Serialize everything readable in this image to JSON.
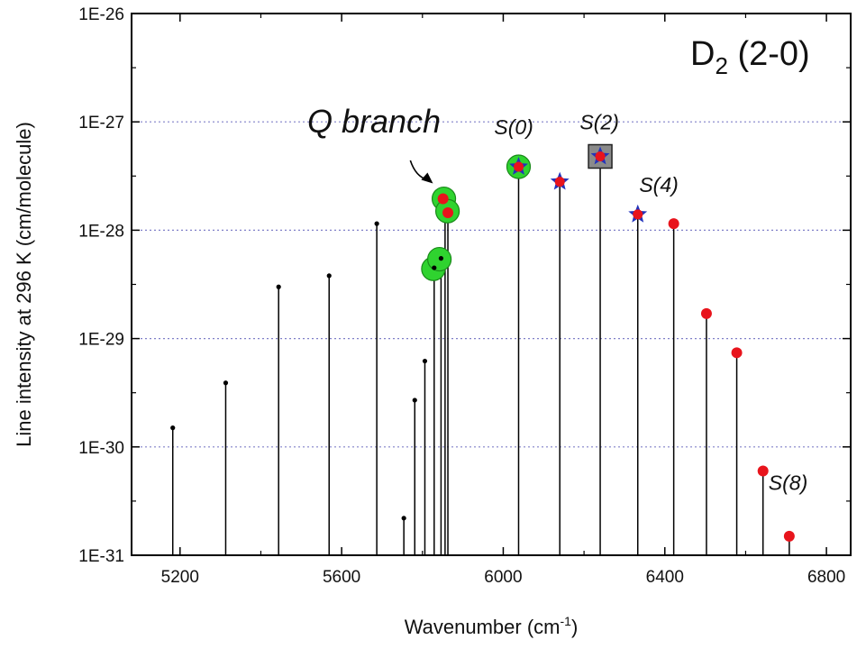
{
  "chart_data": {
    "type": "scatter",
    "xlabel": "Wavenumber (cm",
    "xlabel_sup": "-1",
    "xlabel_end": ")",
    "ylabel": "Line intensity at 296 K (cm/molecule)",
    "xlim": [
      5080,
      6860
    ],
    "ylim": [
      1e-31,
      1e-26
    ],
    "yscale": "log",
    "xticks": [
      5200,
      5600,
      6000,
      6400,
      6800
    ],
    "yticks": [
      1e-31,
      1e-30,
      1e-29,
      1e-28,
      1e-27,
      1e-26
    ],
    "ytick_labels": [
      "1E-31",
      "1E-30",
      "1E-29",
      "1E-28",
      "1E-27",
      "1E-26"
    ],
    "grid": "horizontal dotted",
    "molecule": {
      "base": "D",
      "sub": "2",
      "band": " (2-0)"
    },
    "colors": {
      "stem": "#000000",
      "red": "#e8141c",
      "green": "#2fd32f",
      "star": "#2233bb",
      "grid": "#8080c8",
      "box": "#8a8a8a"
    },
    "series": [
      {
        "marker": "small-black-dot",
        "points": [
          {
            "x": 5182,
            "y": 1.5e-30
          },
          {
            "x": 5313,
            "y": 3.9e-30
          },
          {
            "x": 5444,
            "y": 3e-29
          },
          {
            "x": 5569,
            "y": 3.8e-29
          },
          {
            "x": 5687,
            "y": 1.15e-28
          },
          {
            "x": 5754,
            "y": 2.2e-31
          },
          {
            "x": 5781,
            "y": 2.7e-30
          },
          {
            "x": 5806,
            "y": 6.2e-30
          },
          {
            "x": 5829,
            "y": 4.5e-29
          },
          {
            "x": 5846,
            "y": 5.5e-29
          }
        ]
      },
      {
        "marker": "red-dot",
        "points": [
          {
            "x": 5851,
            "y": 1.95e-28
          },
          {
            "x": 5863,
            "y": 1.45e-28
          },
          {
            "x": 6422,
            "y": 1.15e-28
          },
          {
            "x": 6503,
            "y": 1.7e-29
          },
          {
            "x": 6578,
            "y": 7.4e-30
          },
          {
            "x": 6643,
            "y": 6e-31
          },
          {
            "x": 6708,
            "y": 1.5e-31
          }
        ]
      },
      {
        "marker": "green-circle",
        "points": [
          {
            "x": 5827,
            "y": 4.4e-29
          },
          {
            "x": 5842,
            "y": 5.4e-29
          },
          {
            "x": 5853,
            "y": 1.95e-28
          },
          {
            "x": 5862,
            "y": 1.5e-28
          },
          {
            "x": 6038,
            "y": 3.85e-28
          }
        ]
      },
      {
        "marker": "blue-star",
        "points": [
          {
            "x": 6038,
            "y": 3.85e-28
          },
          {
            "x": 6140,
            "y": 2.8e-28
          },
          {
            "x": 6240,
            "y": 4.8e-28
          },
          {
            "x": 6333,
            "y": 1.4e-28
          }
        ]
      },
      {
        "marker": "open-square",
        "points": [
          {
            "x": 6240,
            "y": 4.8e-28
          }
        ]
      }
    ],
    "stems": [
      {
        "x": 5182,
        "y": 1.5e-30
      },
      {
        "x": 5313,
        "y": 3.9e-30
      },
      {
        "x": 5444,
        "y": 3e-29
      },
      {
        "x": 5569,
        "y": 3.8e-29
      },
      {
        "x": 5687,
        "y": 1.15e-28
      },
      {
        "x": 5754,
        "y": 2.2e-31
      },
      {
        "x": 5781,
        "y": 2.7e-30
      },
      {
        "x": 5806,
        "y": 6.2e-30
      },
      {
        "x": 5829,
        "y": 4.5e-29
      },
      {
        "x": 5846,
        "y": 5.5e-29
      },
      {
        "x": 5856,
        "y": 1.95e-28
      },
      {
        "x": 5863,
        "y": 1.45e-28
      },
      {
        "x": 6038,
        "y": 3.85e-28
      },
      {
        "x": 6140,
        "y": 2.8e-28
      },
      {
        "x": 6240,
        "y": 4.8e-28
      },
      {
        "x": 6333,
        "y": 1.4e-28
      },
      {
        "x": 6422,
        "y": 1.15e-28
      },
      {
        "x": 6503,
        "y": 1.7e-29
      },
      {
        "x": 6578,
        "y": 7.4e-30
      },
      {
        "x": 6643,
        "y": 6e-31
      },
      {
        "x": 6708,
        "y": 1.5e-31
      }
    ],
    "annotations": [
      {
        "text": "Q branch",
        "x": 5680,
        "y": 8e-28,
        "size": "large"
      },
      {
        "text": "S(0)",
        "x": 6026,
        "y": 7.7e-28,
        "size": "medium"
      },
      {
        "text": "S(2)",
        "x": 6238,
        "y": 8.5e-28,
        "size": "medium"
      },
      {
        "text": "S(4)",
        "x": 6385,
        "y": 2.25e-28,
        "size": "medium"
      },
      {
        "text": "S(8)",
        "x": 6705,
        "y": 4e-31,
        "size": "medium"
      }
    ],
    "arrow": {
      "from": {
        "x": 5770,
        "y": 4.4e-28
      },
      "to": {
        "x": 5826,
        "y": 2.7e-28
      }
    }
  }
}
